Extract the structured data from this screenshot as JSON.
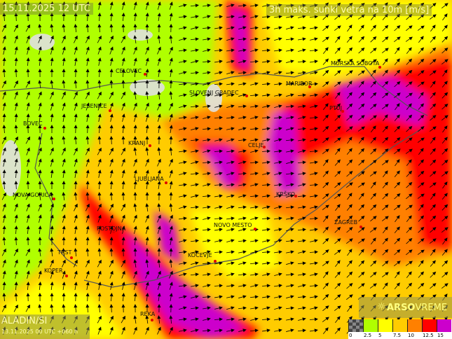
{
  "header": {
    "datetime": "15.11.2025 12 UTC",
    "product": "3h maks. sunki vetra na 10m [m/s]"
  },
  "model": {
    "name": "ALADIN/SI",
    "run": "13.11.2025 00 UTC +060 h"
  },
  "brand": {
    "icon": "sun-icon",
    "name_bold": "ARSO",
    "name_light": "VREME"
  },
  "legend": {
    "labels": [
      "0",
      "2.5",
      "5",
      "7.5",
      "10",
      "12.5",
      "15"
    ],
    "colors": [
      "#555555",
      "#b0ff00",
      "#ffff00",
      "#ffcc00",
      "#ff8000",
      "#ff0000",
      "#cc00cc"
    ]
  },
  "cities": [
    {
      "name": "CELOVEC"
    },
    {
      "name": "SLOVENJ GRADEC"
    },
    {
      "name": "MARIBOR"
    },
    {
      "name": "MURSKA SOBOTA"
    },
    {
      "name": "PTUJ"
    },
    {
      "name": "JESENICE"
    },
    {
      "name": "BOVEC"
    },
    {
      "name": "KRANJ"
    },
    {
      "name": "CELJE"
    },
    {
      "name": "LJUBLJANA"
    },
    {
      "name": "NOVA GORICA"
    },
    {
      "name": "KRŠKO"
    },
    {
      "name": "POSTOJNA"
    },
    {
      "name": "NOVO MESTO"
    },
    {
      "name": "ZAGREB"
    },
    {
      "name": "TRST"
    },
    {
      "name": "KOČEVJE"
    },
    {
      "name": "KOPER"
    },
    {
      "name": "REKA"
    }
  ]
}
